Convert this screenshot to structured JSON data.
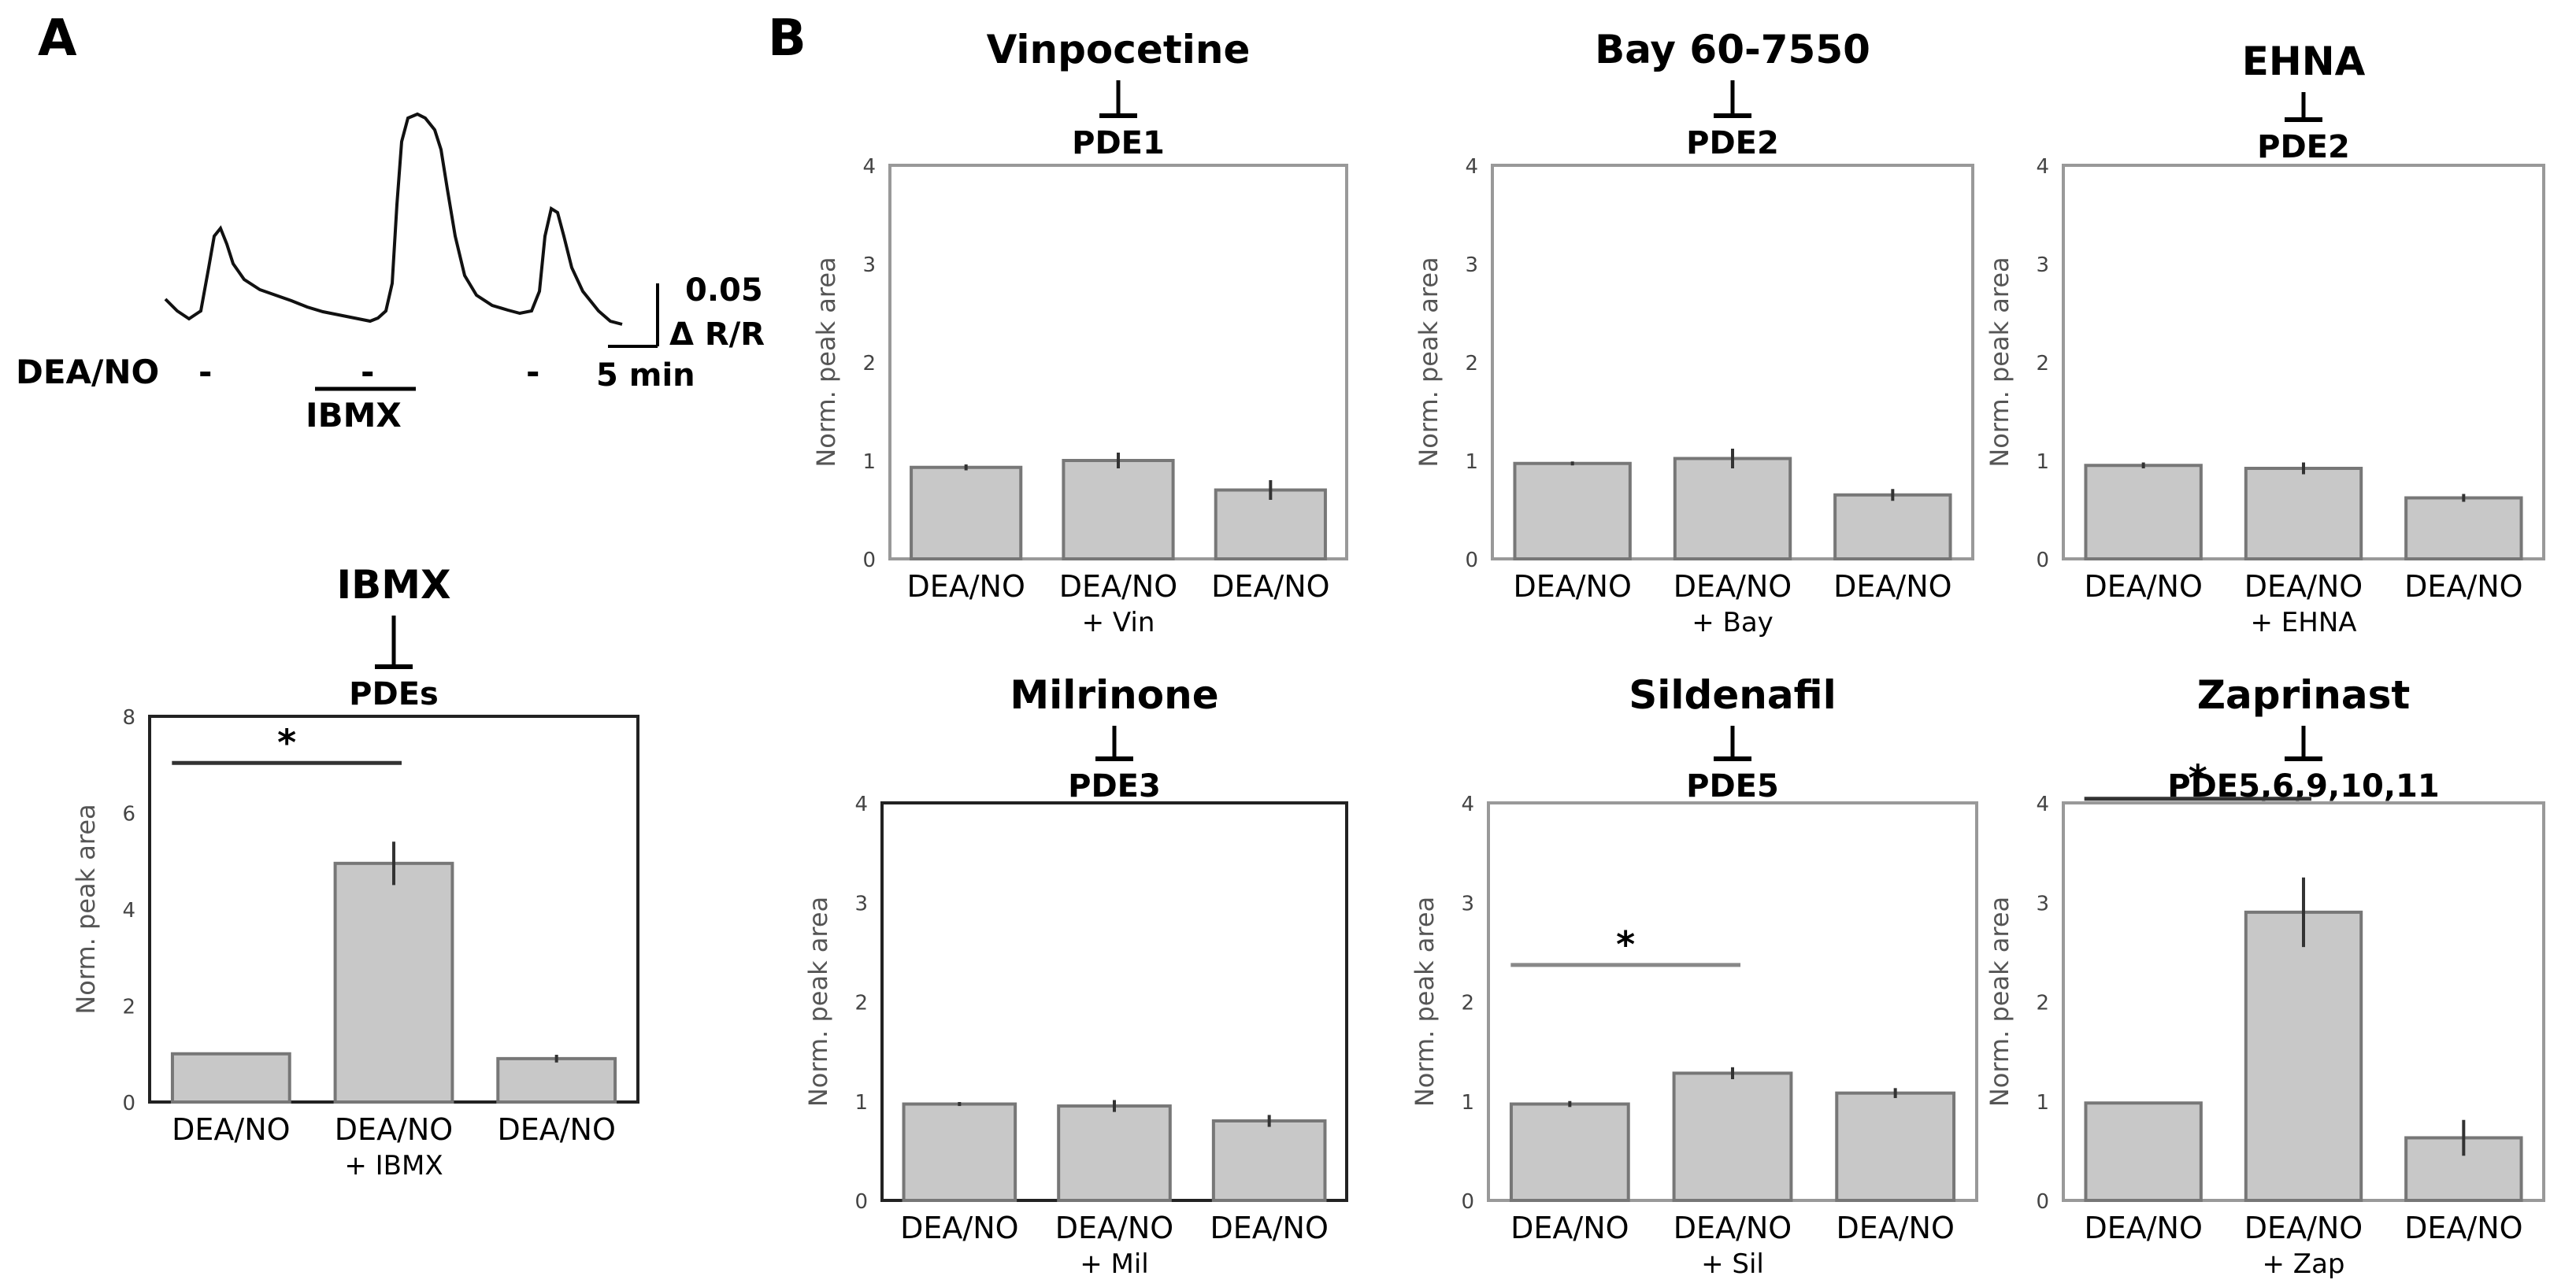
{
  "panel_labels": {
    "a": "A",
    "b": "B"
  },
  "trace": {
    "dea_no_label": "DEA/NO",
    "dea_no_bar_1": "-",
    "dea_no_bar_2": "-",
    "dea_no_bar_3": "-",
    "ibmx_label": "IBMX",
    "scale_amplitude": "0.05",
    "scale_unit": "Δ R/R",
    "scale_time": "5 min"
  },
  "chart_data": [
    {
      "id": "ibmx",
      "type": "bar",
      "title": "IBMX",
      "target": "PDEs",
      "ylabel": "Norm. peak area",
      "ylim": [
        0,
        8
      ],
      "yticks": [
        0,
        2,
        4,
        6,
        8
      ],
      "categories": [
        "DEA/NO",
        "DEA/NO",
        "DEA/NO"
      ],
      "category_sublabels": [
        "",
        "+ IBMX",
        ""
      ],
      "values": [
        1.0,
        4.95,
        0.9
      ],
      "errors": [
        0,
        0.45,
        0.08
      ],
      "significance": {
        "from": 0,
        "to": 1,
        "label": "*"
      }
    },
    {
      "id": "vinpocetine",
      "type": "bar",
      "title": "Vinpocetine",
      "target": "PDE1",
      "ylabel": "Norm. peak area",
      "ylim": [
        0,
        4
      ],
      "yticks": [
        0,
        1,
        2,
        3,
        4
      ],
      "categories": [
        "DEA/NO",
        "DEA/NO",
        "DEA/NO"
      ],
      "category_sublabels": [
        "",
        "+ Vin",
        ""
      ],
      "values": [
        0.93,
        1.0,
        0.7
      ],
      "errors": [
        0.03,
        0.08,
        0.1
      ],
      "significance": null
    },
    {
      "id": "bay",
      "type": "bar",
      "title": "Bay 60-7550",
      "target": "PDE2",
      "ylabel": "Norm. peak area",
      "ylim": [
        0,
        4
      ],
      "yticks": [
        0,
        1,
        2,
        3,
        4
      ],
      "categories": [
        "DEA/NO",
        "DEA/NO",
        "DEA/NO"
      ],
      "category_sublabels": [
        "",
        "+ Bay",
        ""
      ],
      "values": [
        0.97,
        1.02,
        0.65
      ],
      "errors": [
        0.02,
        0.1,
        0.06
      ],
      "significance": null
    },
    {
      "id": "ehna",
      "type": "bar",
      "title": "EHNA",
      "target": "PDE2",
      "ylabel": "Norm. peak area",
      "ylim": [
        0,
        4
      ],
      "yticks": [
        0,
        1,
        2,
        3,
        4
      ],
      "categories": [
        "DEA/NO",
        "DEA/NO",
        "DEA/NO"
      ],
      "category_sublabels": [
        "",
        "+ EHNA",
        ""
      ],
      "values": [
        0.95,
        0.92,
        0.62
      ],
      "errors": [
        0.03,
        0.06,
        0.04
      ],
      "significance": null
    },
    {
      "id": "milrinone",
      "type": "bar",
      "title": "Milrinone",
      "target": "PDE3",
      "ylabel": "Norm. peak area",
      "ylim": [
        0,
        4
      ],
      "yticks": [
        0,
        1,
        2,
        3,
        4
      ],
      "categories": [
        "DEA/NO",
        "DEA/NO",
        "DEA/NO"
      ],
      "category_sublabels": [
        "",
        "+ Mil",
        ""
      ],
      "values": [
        0.97,
        0.95,
        0.8
      ],
      "errors": [
        0.02,
        0.06,
        0.06
      ],
      "significance": null
    },
    {
      "id": "sildenafil",
      "type": "bar",
      "title": "Sildenafil",
      "target": "PDE5",
      "ylabel": "Norm. peak area",
      "ylim": [
        0,
        4
      ],
      "yticks": [
        0,
        1,
        2,
        3,
        4
      ],
      "categories": [
        "DEA/NO",
        "DEA/NO",
        "DEA/NO"
      ],
      "category_sublabels": [
        "",
        "+ Sil",
        ""
      ],
      "values": [
        0.97,
        1.28,
        1.08
      ],
      "errors": [
        0.03,
        0.06,
        0.05
      ],
      "significance": {
        "from": 0,
        "to": 1,
        "label": "*"
      }
    },
    {
      "id": "zaprinast",
      "type": "bar",
      "title": "Zaprinast",
      "target": "PDE5,6,9,10,11",
      "ylabel": "Norm. peak area",
      "ylim": [
        0,
        4
      ],
      "yticks": [
        0,
        1,
        2,
        3,
        4
      ],
      "categories": [
        "DEA/NO",
        "DEA/NO",
        "DEA/NO"
      ],
      "category_sublabels": [
        "",
        "+ Zap",
        ""
      ],
      "values": [
        0.98,
        2.9,
        0.63
      ],
      "errors": [
        0,
        0.35,
        0.18
      ],
      "significance": {
        "from": 0,
        "to": 1,
        "label": "*"
      }
    }
  ]
}
